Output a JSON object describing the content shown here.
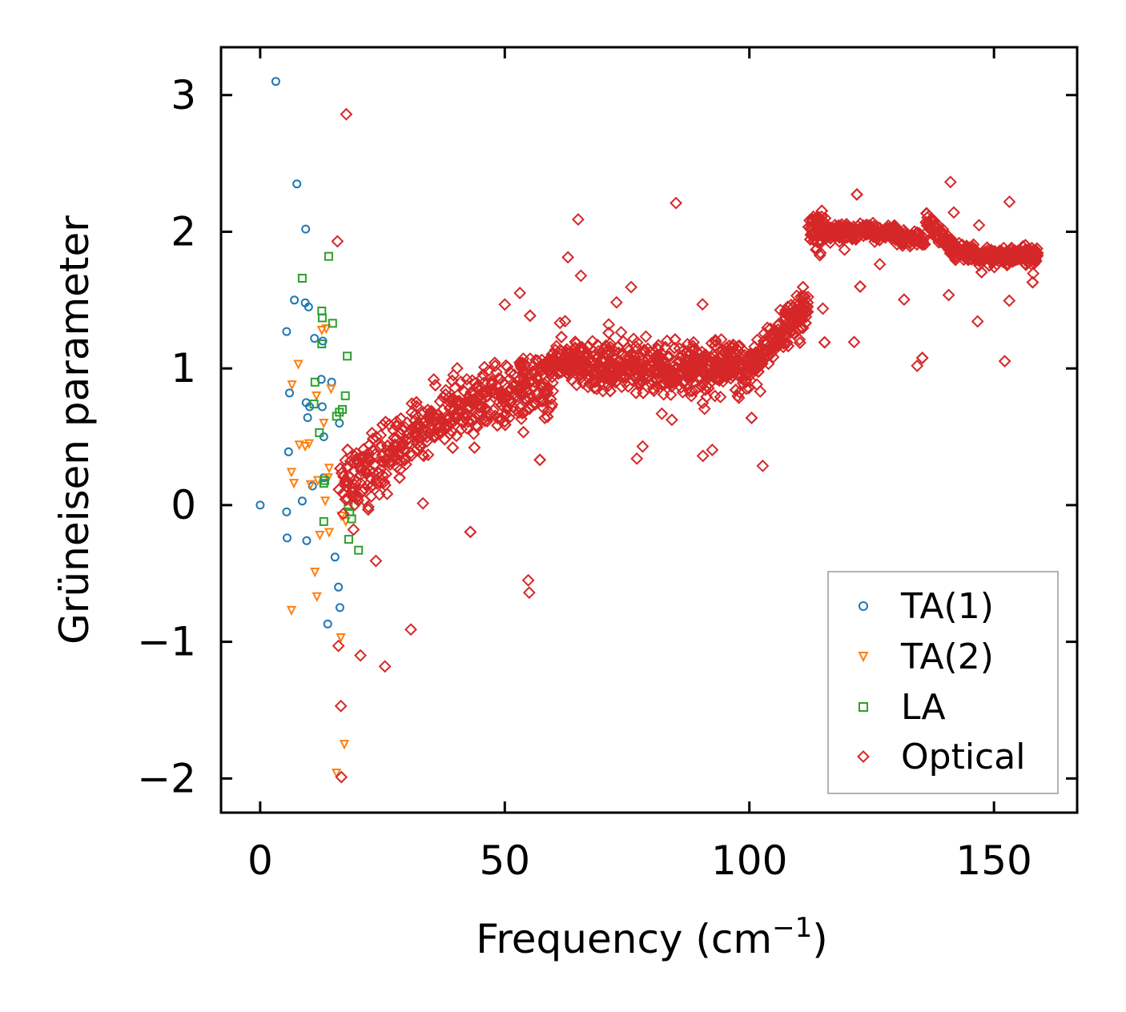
{
  "chart_data": {
    "type": "scatter",
    "title": "",
    "xlabel": "Frequency (cm",
    "xlabel_sup": "−1",
    "xlabel_close": ")",
    "ylabel": "Grüneisen parameter",
    "xlim": [
      -8,
      167
    ],
    "ylim": [
      -2.25,
      3.35
    ],
    "xticks": [
      0,
      50,
      100,
      150
    ],
    "xtick_labels": [
      "0",
      "50",
      "100",
      "150"
    ],
    "yticks": [
      -2,
      -1,
      0,
      1,
      2,
      3
    ],
    "ytick_labels": [
      "−2",
      "−1",
      "0",
      "1",
      "2",
      "3"
    ],
    "grid": false,
    "legend_position": "lower-right",
    "series": [
      {
        "name": "TA(1)",
        "color": "#1f77b4",
        "marker": "circle",
        "points": [
          [
            0.0,
            0.0
          ],
          [
            3.2,
            3.1
          ],
          [
            7.5,
            2.35
          ],
          [
            9.3,
            2.02
          ],
          [
            7.0,
            1.5
          ],
          [
            9.2,
            1.48
          ],
          [
            9.9,
            1.45
          ],
          [
            5.4,
            1.27
          ],
          [
            11.1,
            1.22
          ],
          [
            12.8,
            1.2
          ],
          [
            12.5,
            0.92
          ],
          [
            14.6,
            0.9
          ],
          [
            6.0,
            0.82
          ],
          [
            9.4,
            0.75
          ],
          [
            10.1,
            0.72
          ],
          [
            12.7,
            0.72
          ],
          [
            9.7,
            0.64
          ],
          [
            16.2,
            0.6
          ],
          [
            13.0,
            0.5
          ],
          [
            5.8,
            0.39
          ],
          [
            10.7,
            0.14
          ],
          [
            13.0,
            0.2
          ],
          [
            8.6,
            0.03
          ],
          [
            5.4,
            -0.05
          ],
          [
            5.5,
            -0.24
          ],
          [
            9.5,
            -0.26
          ],
          [
            15.3,
            -0.38
          ],
          [
            16.0,
            -0.6
          ],
          [
            16.3,
            -0.75
          ],
          [
            13.8,
            -0.87
          ]
        ]
      },
      {
        "name": "TA(2)",
        "color": "#ff7f0e",
        "marker": "triangle-down",
        "points": [
          [
            7.8,
            1.03
          ],
          [
            12.6,
            1.28
          ],
          [
            13.5,
            1.29
          ],
          [
            6.5,
            0.88
          ],
          [
            11.5,
            0.8
          ],
          [
            14.5,
            0.85
          ],
          [
            13.0,
            0.6
          ],
          [
            9.2,
            0.43
          ],
          [
            10.0,
            0.45
          ],
          [
            8.0,
            0.44
          ],
          [
            6.4,
            0.24
          ],
          [
            6.9,
            0.16
          ],
          [
            11.8,
            0.18
          ],
          [
            13.9,
            0.2
          ],
          [
            14.1,
            0.27
          ],
          [
            10.3,
            0.15
          ],
          [
            13.3,
            0.03
          ],
          [
            12.2,
            -0.22
          ],
          [
            14.1,
            -0.2
          ],
          [
            16.6,
            -0.08
          ],
          [
            17.5,
            -0.12
          ],
          [
            11.2,
            -0.49
          ],
          [
            11.6,
            -0.67
          ],
          [
            6.4,
            -0.77
          ],
          [
            16.5,
            -0.97
          ],
          [
            17.2,
            -1.75
          ],
          [
            15.6,
            -1.96
          ]
        ]
      },
      {
        "name": "LA",
        "color": "#2ca02c",
        "marker": "square",
        "points": [
          [
            14.0,
            1.82
          ],
          [
            8.6,
            1.66
          ],
          [
            12.6,
            1.42
          ],
          [
            12.7,
            1.37
          ],
          [
            14.8,
            1.33
          ],
          [
            12.6,
            1.18
          ],
          [
            17.8,
            1.09
          ],
          [
            17.4,
            0.8
          ],
          [
            11.2,
            0.9
          ],
          [
            16.8,
            0.7
          ],
          [
            11.0,
            0.74
          ],
          [
            16.2,
            0.68
          ],
          [
            12.1,
            0.53
          ],
          [
            15.6,
            0.65
          ],
          [
            13.2,
            0.18
          ],
          [
            13.0,
            0.16
          ],
          [
            20.1,
            0.04
          ],
          [
            18.0,
            -0.01
          ],
          [
            18.3,
            -0.05
          ],
          [
            18.7,
            -0.1
          ],
          [
            13.0,
            -0.12
          ],
          [
            18.1,
            -0.25
          ],
          [
            20.1,
            -0.33
          ]
        ]
      },
      {
        "name": "Optical",
        "color": "#d62728",
        "marker": "diamond",
        "points": []
      }
    ]
  }
}
